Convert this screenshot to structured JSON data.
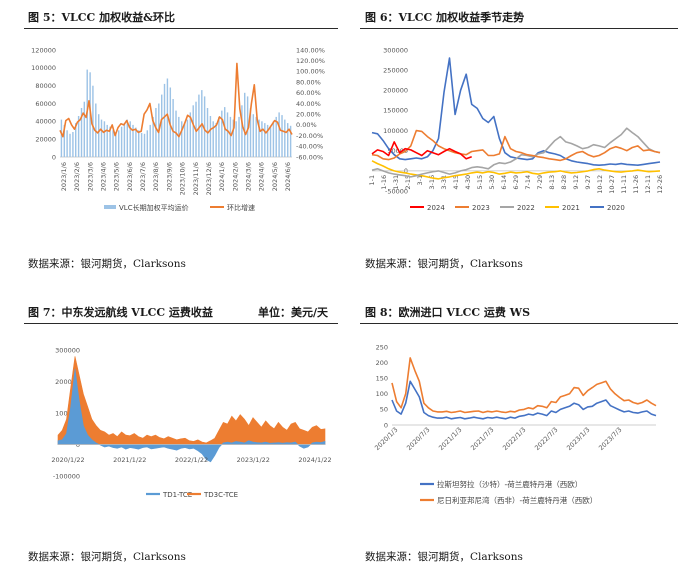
{
  "source_text": "数据来源：银河期货，Clarksons",
  "colors": {
    "blue": "#4472c4",
    "lightblue": "#9dc3e6",
    "orange": "#ed7d31",
    "gray": "#a5a5a5",
    "yellow": "#ffc000",
    "red": "#ff0000",
    "dark": "#2a2a2a"
  },
  "chart_data": [
    {
      "id": "fig5",
      "type": "bar+line",
      "title": "图 5：VLCC 加权收益&环比",
      "x_ticks": [
        "2023/1/6",
        "2023/2/6",
        "2023/3/6",
        "2023/4/6",
        "2023/5/6",
        "2023/6/6",
        "2023/7/6",
        "2023/8/6",
        "2023/9/6",
        "2023/10/6",
        "2023/11/6",
        "2023/12/6",
        "2024/1/6",
        "2024/2/6",
        "2024/3/6",
        "2024/4/6",
        "2024/5/6",
        "2024/6/6"
      ],
      "y_ticks": [
        "0",
        "20000",
        "40000",
        "60000",
        "80000",
        "100000",
        "120000"
      ],
      "y2_ticks": [
        "-60.00%",
        "-40.00%",
        "-20.00%",
        "0.00%",
        "20.00%",
        "40.00%",
        "60.00%",
        "80.00%",
        "100.00%",
        "120.00%",
        "140.00%"
      ],
      "ylim": [
        0,
        120000
      ],
      "y2lim": [
        -60,
        140
      ],
      "series": [
        {
          "name": "VLC长期加权平均运价",
          "type": "bar",
          "values": [
            42000,
            36000,
            30000,
            26000,
            28000,
            38000,
            46000,
            55000,
            62000,
            98000,
            95000,
            80000,
            60000,
            48000,
            42000,
            40000,
            36000,
            34000,
            30000,
            28000,
            30000,
            34000,
            38000,
            42000,
            40000,
            36000,
            33000,
            30000,
            27000,
            26000,
            30000,
            36000,
            45000,
            55000,
            60000,
            70000,
            82000,
            88000,
            78000,
            65000,
            52000,
            45000,
            40000,
            38000,
            42000,
            50000,
            58000,
            62000,
            70000,
            75000,
            68000,
            55000,
            46000,
            40000,
            38000,
            45000,
            52000,
            56000,
            50000,
            45000,
            42000,
            40000,
            45000,
            58000,
            72000,
            68000,
            55000,
            48000,
            45000,
            42000,
            40000,
            38000,
            36000,
            35000,
            40000,
            45000,
            50000,
            47000,
            42000,
            38000,
            35000
          ]
        },
        {
          "name": "环比增速",
          "type": "line",
          "values": [
            -10,
            -22,
            8,
            12,
            0,
            -8,
            5,
            10,
            22,
            14,
            45,
            2,
            -10,
            -15,
            -8,
            -14,
            -10,
            -12,
            0,
            -20,
            -5,
            2,
            0,
            8,
            -5,
            -10,
            -8,
            -14,
            -12,
            20,
            28,
            40,
            8,
            -5,
            -14,
            10,
            15,
            20,
            0,
            -12,
            -15,
            -22,
            -10,
            3,
            18,
            14,
            0,
            -12,
            -5,
            2,
            -10,
            -15,
            -8,
            -5,
            0,
            15,
            10,
            -8,
            -12,
            -20,
            -5,
            115,
            30,
            -3,
            -18,
            -5,
            40,
            75,
            10,
            -12,
            -8,
            -15,
            -8,
            0,
            8,
            5,
            -10,
            -12,
            -14,
            -8,
            -18
          ]
        }
      ],
      "legend": [
        "VLC长期加权平均运价",
        "环比增速"
      ]
    },
    {
      "id": "fig6",
      "type": "line",
      "title": "图 6：VLCC 加权收益季节走势",
      "x_ticks": [
        "1-1",
        "1-16",
        "1-31",
        "2-15",
        "3-1",
        "3-16",
        "3-31",
        "4-15",
        "4-30",
        "5-15",
        "5-30",
        "6-14",
        "6-29",
        "7-14",
        "7-29",
        "8-13",
        "8-28",
        "9-12",
        "9-27",
        "10-12",
        "10-27",
        "11-11",
        "11-26",
        "12-11",
        "12-26"
      ],
      "y_ticks": [
        "-50000",
        "0",
        "50000",
        "100000",
        "150000",
        "200000",
        "250000",
        "300000"
      ],
      "ylim": [
        -50000,
        300000
      ],
      "series": [
        {
          "name": "2024",
          "color": "#ff0000",
          "values": [
            42000,
            52000,
            48000,
            38000,
            72000,
            45000,
            55000,
            52000,
            45000,
            38000,
            50000,
            45000,
            40000,
            48000,
            55000,
            48000,
            42000,
            30000,
            35000
          ]
        },
        {
          "name": "2023",
          "color": "#ed7d31",
          "values": [
            40000,
            38000,
            30000,
            28000,
            32000,
            42000,
            48000,
            62000,
            100000,
            98000,
            85000,
            75000,
            62000,
            55000,
            50000,
            45000,
            42000,
            40000,
            48000,
            50000,
            52000,
            38000,
            38000,
            42000,
            85000,
            55000,
            48000,
            45000,
            40000,
            38000,
            35000,
            33000,
            30000,
            28000,
            26000,
            30000,
            38000,
            45000,
            48000,
            40000,
            35000,
            38000,
            45000,
            55000,
            60000,
            56000,
            50000,
            58000,
            62000,
            50000,
            52000,
            48000,
            45000
          ]
        },
        {
          "name": "2022",
          "color": "#a5a5a5",
          "values": [
            2000,
            5000,
            0,
            -5000,
            -8000,
            -10000,
            -12000,
            -15000,
            -12000,
            -8000,
            -5000,
            -2000,
            0,
            -4000,
            -8000,
            -5000,
            0,
            3000,
            8000,
            10000,
            8000,
            5000,
            15000,
            20000,
            18000,
            22000,
            30000,
            40000,
            38000,
            35000,
            42000,
            45000,
            60000,
            75000,
            85000,
            72000,
            68000,
            62000,
            55000,
            58000,
            65000,
            62000,
            58000,
            70000,
            80000,
            90000,
            106000,
            95000,
            85000,
            70000,
            55000,
            48000,
            45000
          ]
        },
        {
          "name": "2021",
          "color": "#ffc000",
          "values": [
            25000,
            18000,
            12000,
            5000,
            0,
            -3000,
            -5000,
            -8000,
            -10000,
            -12000,
            -15000,
            -18000,
            -20000,
            -17000,
            -15000,
            -12000,
            -10000,
            -8000,
            -5000,
            -3000,
            -5000,
            -2000,
            -4000,
            -8000,
            -6000,
            -3000,
            -5000,
            -4000,
            -2000,
            -6000,
            -8000,
            -5000,
            -3000,
            -2000,
            0,
            -3000,
            -5000,
            -4000,
            -2000,
            0,
            3000,
            5000,
            2000,
            0,
            -2000,
            -3000,
            -1000,
            0,
            2000,
            0,
            -2000,
            -1000,
            0
          ]
        },
        {
          "name": "2020",
          "color": "#4472c4",
          "values": [
            95000,
            92000,
            75000,
            55000,
            40000,
            30000,
            28000,
            30000,
            32000,
            30000,
            35000,
            50000,
            80000,
            195000,
            280000,
            140000,
            200000,
            240000,
            165000,
            155000,
            130000,
            120000,
            135000,
            80000,
            45000,
            35000,
            32000,
            30000,
            28000,
            30000,
            45000,
            50000,
            45000,
            42000,
            38000,
            30000,
            25000,
            22000,
            20000,
            18000,
            15000,
            14000,
            15000,
            17000,
            16000,
            18000,
            16000,
            15000,
            14000,
            16000,
            18000,
            20000,
            22000
          ]
        }
      ],
      "legend": [
        "2024",
        "2023",
        "2022",
        "2021",
        "2020"
      ]
    },
    {
      "id": "fig7",
      "type": "area",
      "title": "图 7：中东发远航线 VLCC 运费收益",
      "unit": "单位：美元/天",
      "x_ticks": [
        "2020/1/22",
        "2021/1/22",
        "2022/1/22",
        "2023/1/22",
        "2024/1/22"
      ],
      "y_ticks": [
        "-100000",
        "0",
        "100000",
        "200000",
        "300000"
      ],
      "ylim": [
        -100000,
        300000
      ],
      "series": [
        {
          "name": "TD1-TCE",
          "color": "#5b9bd5",
          "values": [
            12000,
            15000,
            35000,
            120000,
            240000,
            140000,
            60000,
            30000,
            15000,
            5000,
            -2000,
            -8000,
            -5000,
            -10000,
            -12000,
            -8000,
            -15000,
            -10000,
            -12000,
            -15000,
            -10000,
            -8000,
            -14000,
            -12000,
            -10000,
            -8000,
            -12000,
            -15000,
            -18000,
            -12000,
            -10000,
            -14000,
            -12000,
            -20000,
            -30000,
            -48000,
            -55000,
            -35000,
            -10000,
            5000,
            8000,
            5000,
            10000,
            8000,
            5000,
            12000,
            8000,
            6000,
            5000,
            8000,
            4000,
            5000,
            6000,
            4000,
            6000,
            5000,
            8000,
            -5000,
            -12000,
            -8000,
            5000,
            8000,
            6000,
            10000
          ]
        },
        {
          "name": "TD3C-TCE",
          "color": "#ed7d31",
          "values": [
            30000,
            45000,
            80000,
            180000,
            280000,
            220000,
            160000,
            120000,
            80000,
            60000,
            45000,
            40000,
            30000,
            35000,
            25000,
            40000,
            30000,
            28000,
            35000,
            25000,
            20000,
            30000,
            25000,
            30000,
            22000,
            18000,
            25000,
            20000,
            15000,
            18000,
            20000,
            12000,
            10000,
            15000,
            8000,
            5000,
            12000,
            20000,
            45000,
            70000,
            65000,
            90000,
            75000,
            95000,
            80000,
            60000,
            85000,
            70000,
            55000,
            75000,
            60000,
            50000,
            70000,
            55000,
            45000,
            65000,
            70000,
            50000,
            45000,
            40000,
            55000,
            60000,
            48000,
            50000
          ]
        }
      ],
      "legend": [
        "TD1-TCE",
        "TD3C-TCE"
      ]
    },
    {
      "id": "fig8",
      "type": "line",
      "title": "图 8：欧洲进口 VLCC 运费 WS",
      "x_ticks": [
        "2020/1/3",
        "2020/7/3",
        "2021/1/3",
        "2021/7/3",
        "2022/1/3",
        "2022/7/3",
        "2023/1/3",
        "2023/7/3"
      ],
      "y_ticks": [
        "0",
        "50",
        "100",
        "150",
        "200",
        "250"
      ],
      "ylim": [
        0,
        250
      ],
      "series": [
        {
          "name": "拉斯坦努拉（沙特）-荷兰鹿特丹港（西欧）",
          "color": "#4472c4",
          "values": [
            80,
            45,
            35,
            70,
            140,
            115,
            90,
            40,
            30,
            25,
            22,
            22,
            25,
            20,
            22,
            24,
            20,
            22,
            25,
            22,
            20,
            24,
            22,
            25,
            22,
            20,
            25,
            22,
            28,
            30,
            35,
            32,
            38,
            35,
            30,
            45,
            40,
            50,
            55,
            60,
            70,
            65,
            50,
            58,
            60,
            70,
            75,
            80,
            62,
            55,
            48,
            42,
            45,
            40,
            38,
            42,
            45,
            35,
            30
          ]
        },
        {
          "name": "尼日利亚邦尼湾（西非）-荷兰鹿特丹港（西欧）",
          "color": "#ed7d31",
          "values": [
            135,
            75,
            55,
            100,
            215,
            175,
            140,
            70,
            55,
            45,
            42,
            42,
            44,
            40,
            42,
            45,
            40,
            42,
            44,
            45,
            40,
            44,
            42,
            45,
            42,
            40,
            44,
            42,
            48,
            50,
            55,
            52,
            62,
            60,
            55,
            75,
            72,
            90,
            95,
            100,
            120,
            118,
            95,
            110,
            120,
            130,
            135,
            140,
            115,
            100,
            88,
            78,
            80,
            72,
            68,
            72,
            80,
            70,
            62
          ]
        }
      ],
      "legend": [
        "拉斯坦努拉（沙特）-荷兰鹿特丹港（西欧）",
        "尼日利亚邦尼湾（西非）-荷兰鹿特丹港（西欧）"
      ]
    }
  ]
}
